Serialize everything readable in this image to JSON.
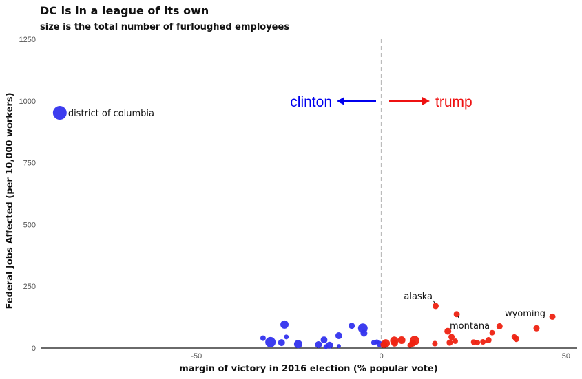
{
  "chart_data": {
    "type": "scatter",
    "title": "DC is in a league of its own",
    "subtitle": "size is the total number of furloughed employees",
    "xlabel": "margin of victory in 2016 election (% popular vote)",
    "ylabel": "Federal Jobs Affected (per 10,000 workers)",
    "xlim": [
      -92,
      53
    ],
    "ylim": [
      0,
      1250
    ],
    "xticks": [
      -50,
      0,
      50
    ],
    "yticks": [
      0,
      250,
      500,
      750,
      1000,
      1250
    ],
    "grid": false,
    "reference_line_x": 0,
    "colors": {
      "clinton": "#3333ee",
      "trump": "#ee2211",
      "reference": "#bbbbbb",
      "axis": "#111111"
    },
    "direction_labels": {
      "left": "clinton",
      "right": "trump"
    },
    "annotations": [
      {
        "text": "district of columbia",
        "x": -87,
        "y": 952
      },
      {
        "text": "alaska",
        "x": 14.7,
        "y": 170
      },
      {
        "text": "montana",
        "x": 20.4,
        "y": 137
      },
      {
        "text": "wyoming",
        "x": 46.3,
        "y": 127
      }
    ],
    "series": [
      {
        "party": "clinton",
        "points": [
          {
            "x": -87.0,
            "y": 952,
            "r": 10
          },
          {
            "x": -26.2,
            "y": 95,
            "r": 6
          },
          {
            "x": -25.7,
            "y": 45,
            "r": 3.5
          },
          {
            "x": -27.0,
            "y": 22,
            "r": 5
          },
          {
            "x": -30.0,
            "y": 24,
            "r": 7.5
          },
          {
            "x": -32.0,
            "y": 40,
            "r": 4
          },
          {
            "x": -22.5,
            "y": 16,
            "r": 6
          },
          {
            "x": -17.0,
            "y": 14,
            "r": 5
          },
          {
            "x": -15.5,
            "y": 33,
            "r": 5
          },
          {
            "x": -14.0,
            "y": 12,
            "r": 5
          },
          {
            "x": -11.5,
            "y": 50,
            "r": 5
          },
          {
            "x": -8.0,
            "y": 90,
            "r": 4.5
          },
          {
            "x": -5.0,
            "y": 80,
            "r": 7
          },
          {
            "x": -4.7,
            "y": 60,
            "r": 5
          },
          {
            "x": -2.0,
            "y": 22,
            "r": 4
          },
          {
            "x": -1.2,
            "y": 25,
            "r": 3.5
          },
          {
            "x": -0.5,
            "y": 17,
            "r": 4.5
          },
          {
            "x": -15.0,
            "y": 6,
            "r": 3.5
          },
          {
            "x": -11.5,
            "y": 8,
            "r": 3
          }
        ]
      },
      {
        "party": "trump",
        "points": [
          {
            "x": 14.7,
            "y": 170,
            "r": 4.5
          },
          {
            "x": 20.4,
            "y": 137,
            "r": 4.5
          },
          {
            "x": 46.3,
            "y": 127,
            "r": 4.5
          },
          {
            "x": 42.0,
            "y": 80,
            "r": 4.5
          },
          {
            "x": 32.0,
            "y": 88,
            "r": 4.5
          },
          {
            "x": 30.0,
            "y": 62,
            "r": 4
          },
          {
            "x": 29.0,
            "y": 32,
            "r": 4.5
          },
          {
            "x": 36.0,
            "y": 45,
            "r": 4
          },
          {
            "x": 36.5,
            "y": 37,
            "r": 4.5
          },
          {
            "x": 18.0,
            "y": 68,
            "r": 5
          },
          {
            "x": 19.0,
            "y": 45,
            "r": 4.5
          },
          {
            "x": 18.5,
            "y": 22,
            "r": 4.5
          },
          {
            "x": 20.0,
            "y": 28,
            "r": 4
          },
          {
            "x": 25.0,
            "y": 24,
            "r": 4
          },
          {
            "x": 26.0,
            "y": 22,
            "r": 4
          },
          {
            "x": 27.5,
            "y": 25,
            "r": 4
          },
          {
            "x": 14.5,
            "y": 18,
            "r": 4
          },
          {
            "x": 9.0,
            "y": 30,
            "r": 7
          },
          {
            "x": 8.5,
            "y": 20,
            "r": 5
          },
          {
            "x": 5.5,
            "y": 32,
            "r": 5.5
          },
          {
            "x": 3.5,
            "y": 30,
            "r": 6
          },
          {
            "x": 3.6,
            "y": 20,
            "r": 5
          },
          {
            "x": 1.2,
            "y": 19,
            "r": 6
          },
          {
            "x": 0.7,
            "y": 14,
            "r": 5
          },
          {
            "x": 7.8,
            "y": 12,
            "r": 4
          }
        ]
      }
    ]
  }
}
